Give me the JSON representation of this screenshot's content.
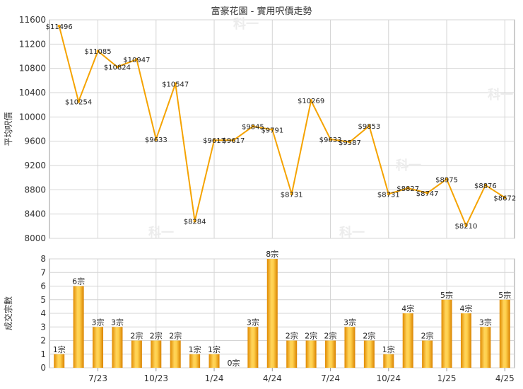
{
  "chart_data": [
    {
      "type": "line",
      "title": "富豪花園 - 實用呎價走勢",
      "ylabel": "平均呎價",
      "ylim": [
        8000,
        11600
      ],
      "yticks": [
        8000,
        8400,
        8800,
        9200,
        9600,
        10000,
        10400,
        10800,
        11200,
        11600
      ],
      "grid": true,
      "color": "#f5a300",
      "values": [
        11496,
        10254,
        11085,
        10824,
        10947,
        9633,
        10547,
        8284,
        9617,
        9617,
        9845,
        9791,
        8731,
        10269,
        9633,
        9587,
        9853,
        8731,
        8827,
        8747,
        8975,
        8210,
        8876,
        8672
      ],
      "labels": [
        "$11496",
        "$10254",
        "$11085",
        "$10824",
        "$10947",
        "$9633",
        "$10547",
        "$8284",
        "$9617",
        "$9617",
        "$9845",
        "$9791",
        "$8731",
        "$10269",
        "$9633",
        "$9587",
        "$9853",
        "$8731",
        "$8827",
        "$8747",
        "$8975",
        "$8210",
        "$8876",
        "$8672"
      ]
    },
    {
      "type": "bar",
      "ylabel": "成交宗數",
      "ylim": [
        0,
        8
      ],
      "yticks": [
        0,
        1,
        2,
        3,
        4,
        5,
        6,
        7,
        8
      ],
      "grid": true,
      "color": "#f2b21a",
      "values": [
        1,
        6,
        3,
        3,
        2,
        2,
        2,
        1,
        1,
        0,
        3,
        8,
        2,
        2,
        2,
        3,
        2,
        1,
        4,
        2,
        5,
        4,
        3,
        5
      ],
      "labels": [
        "1宗",
        "6宗",
        "3宗",
        "3宗",
        "2宗",
        "2宗",
        "2宗",
        "1宗",
        "1宗",
        "0宗",
        "3宗",
        "8宗",
        "2宗",
        "2宗",
        "2宗",
        "3宗",
        "2宗",
        "1宗",
        "4宗",
        "2宗",
        "5宗",
        "4宗",
        "3宗",
        "5宗"
      ],
      "xticks": [
        {
          "label": "7/23",
          "index": 2
        },
        {
          "label": "10/23",
          "index": 5
        },
        {
          "label": "1/24",
          "index": 8
        },
        {
          "label": "4/24",
          "index": 11
        },
        {
          "label": "7/24",
          "index": 14
        },
        {
          "label": "10/24",
          "index": 17
        },
        {
          "label": "1/25",
          "index": 20
        },
        {
          "label": "4/25",
          "index": 23
        }
      ]
    }
  ],
  "watermark": "科一"
}
